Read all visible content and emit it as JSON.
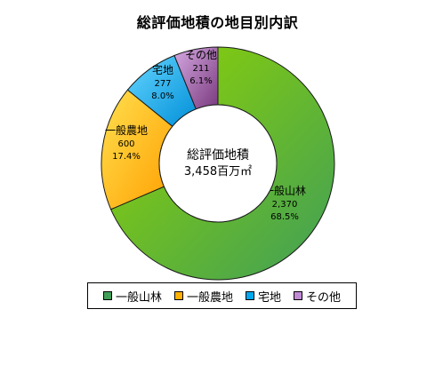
{
  "chart_data": {
    "type": "pie",
    "title": "総評価地積の地目別内訳",
    "center_label": {
      "line1": "総評価地積",
      "line2": "3,458百万㎡"
    },
    "categories": [
      "一般山林",
      "一般農地",
      "宅地",
      "その他"
    ],
    "values": [
      2370,
      600,
      277,
      211
    ],
    "value_labels": [
      "2,370",
      "600",
      "277",
      "211"
    ],
    "percent_labels": [
      "68.5%",
      "17.4%",
      "8.0%",
      "6.1%"
    ],
    "series": [
      {
        "name": "一般山林",
        "value": 2370,
        "value_label": "2,370",
        "percent_label": "68.5%",
        "color_start": "#3F9F58",
        "color_end": "#92D400"
      },
      {
        "name": "一般農地",
        "value": 600,
        "value_label": "600",
        "percent_label": "17.4%",
        "color_start": "#FF9F00",
        "color_end": "#FFE04F"
      },
      {
        "name": "宅地",
        "value": 277,
        "value_label": "277",
        "percent_label": "8.0%",
        "color_start": "#008FD8",
        "color_end": "#66D6FF"
      },
      {
        "name": "その他",
        "value": 211,
        "value_label": "211",
        "percent_label": "6.1%",
        "color_start": "#7A3A7E",
        "color_end": "#D5A9E2"
      }
    ],
    "legend": {
      "position": "bottom",
      "items": [
        {
          "label": "一般山林",
          "color": "#3F9F58"
        },
        {
          "label": "一般農地",
          "color": "#FFB000"
        },
        {
          "label": "宅地",
          "color": "#00A8F0"
        },
        {
          "label": "その他",
          "color": "#C28BD6"
        }
      ]
    }
  }
}
